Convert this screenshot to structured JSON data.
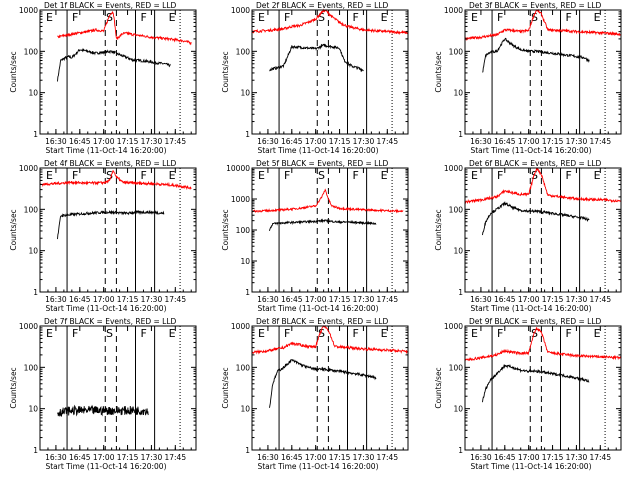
{
  "start_time_label": "Start Time (11-Oct-14 16:20:00)",
  "ylabel": "Counts/sec",
  "yticks": [
    "1",
    "10",
    "100",
    "1000"
  ],
  "yticks_5": [
    "1",
    "10",
    "100",
    "1000",
    "10000"
  ],
  "xticks": [
    "16:30",
    "16:45",
    "17:00",
    "17:15",
    "17:30",
    "17:45"
  ],
  "colors": {
    "events": "#000000",
    "lld": "#ff0000"
  },
  "chart_data": [
    {
      "type": "line",
      "title": "Det 1f BLACK = Events, RED = LLD",
      "ylabel": "Counts/sec",
      "ylim": [
        1,
        1000
      ],
      "y_scale": "log",
      "xlim": [
        "16:20",
        "17:58"
      ],
      "region_labels": [
        "E",
        "F",
        "S",
        "F",
        "E"
      ],
      "solid_lines": [
        "16:37",
        "17:20",
        "17:32"
      ],
      "dashed_lines": [
        "17:01",
        "17:08"
      ],
      "dotted_lines": [
        "17:48"
      ],
      "series": [
        {
          "name": "Events",
          "color": "#000000",
          "x": [
            "16:31",
            "16:33",
            "16:36",
            "16:38",
            "16:40",
            "16:45",
            "16:50",
            "16:55",
            "17:00",
            "17:05",
            "17:11",
            "17:15",
            "17:18",
            "17:22",
            "17:26",
            "17:30",
            "17:34",
            "17:38",
            "17:42"
          ],
          "values": [
            20,
            60,
            70,
            75,
            70,
            110,
            100,
            90,
            95,
            100,
            80,
            70,
            62,
            60,
            58,
            55,
            52,
            50,
            45
          ]
        },
        {
          "name": "LLD",
          "color": "#ff0000",
          "x": [
            "16:31",
            "16:35",
            "16:40",
            "16:45",
            "16:50",
            "16:55",
            "17:00",
            "17:04",
            "17:06",
            "17:07",
            "17:08",
            "17:12",
            "17:15",
            "17:20",
            "17:30",
            "17:40",
            "17:50",
            "17:55"
          ],
          "values": [
            220,
            240,
            260,
            280,
            300,
            330,
            310,
            800,
            900,
            450,
            200,
            270,
            270,
            250,
            220,
            200,
            180,
            160
          ]
        }
      ]
    },
    {
      "type": "line",
      "title": "Det 2f BLACK = Events, RED = LLD",
      "ylabel": "Counts/sec",
      "ylim": [
        1,
        1000
      ],
      "y_scale": "log",
      "xlim": [
        "16:20",
        "17:58"
      ],
      "region_labels": [
        "E",
        "F",
        "S",
        "F",
        "E"
      ],
      "solid_lines": [
        "16:37",
        "17:20",
        "17:32"
      ],
      "dashed_lines": [
        "17:01",
        "17:08"
      ],
      "dotted_lines": [
        "17:48"
      ],
      "series": [
        {
          "name": "Events",
          "color": "#000000",
          "x": [
            "16:31",
            "16:33",
            "16:36",
            "16:40",
            "16:45",
            "16:50",
            "16:55",
            "17:00",
            "17:05",
            "17:10",
            "17:15",
            "17:18",
            "17:22",
            "17:26",
            "17:30"
          ],
          "values": [
            35,
            38,
            40,
            45,
            130,
            125,
            120,
            115,
            140,
            130,
            120,
            60,
            45,
            40,
            35
          ]
        },
        {
          "name": "LLD",
          "color": "#ff0000",
          "x": [
            "16:20",
            "16:30",
            "16:40",
            "16:45",
            "16:50",
            "16:55",
            "17:00",
            "17:04",
            "17:06",
            "17:10",
            "17:15",
            "17:20",
            "17:30",
            "17:45",
            "17:58"
          ],
          "values": [
            300,
            320,
            350,
            400,
            420,
            500,
            600,
            900,
            1000,
            700,
            500,
            400,
            330,
            300,
            280
          ]
        }
      ]
    },
    {
      "type": "line",
      "title": "Det 3f BLACK = Events, RED = LLD",
      "ylabel": "Counts/sec",
      "ylim": [
        1,
        1000
      ],
      "y_scale": "log",
      "xlim": [
        "16:20",
        "17:58"
      ],
      "region_labels": [
        "E",
        "F",
        "S",
        "F",
        "E"
      ],
      "solid_lines": [
        "16:37",
        "17:20",
        "17:32"
      ],
      "dashed_lines": [
        "17:01",
        "17:08"
      ],
      "dotted_lines": [
        "17:48"
      ],
      "series": [
        {
          "name": "Events",
          "color": "#000000",
          "x": [
            "16:31",
            "16:33",
            "16:36",
            "16:40",
            "16:45",
            "16:50",
            "16:55",
            "17:00",
            "17:05",
            "17:10",
            "17:15",
            "17:20",
            "17:25",
            "17:30",
            "17:35",
            "17:38"
          ],
          "values": [
            30,
            80,
            95,
            100,
            200,
            140,
            110,
            100,
            100,
            95,
            90,
            85,
            80,
            75,
            70,
            60
          ]
        },
        {
          "name": "LLD",
          "color": "#ff0000",
          "x": [
            "16:20",
            "16:30",
            "16:40",
            "16:45",
            "16:50",
            "16:55",
            "17:00",
            "17:03",
            "17:05",
            "17:08",
            "17:12",
            "17:20",
            "17:30",
            "17:45",
            "17:58"
          ],
          "values": [
            200,
            220,
            250,
            330,
            320,
            300,
            320,
            700,
            1000,
            800,
            330,
            320,
            300,
            280,
            260
          ]
        }
      ]
    },
    {
      "type": "line",
      "title": "Det 4f BLACK = Events, RED = LLD",
      "ylabel": "Counts/sec",
      "ylim": [
        1,
        1000
      ],
      "y_scale": "log",
      "xlim": [
        "16:20",
        "17:58"
      ],
      "region_labels": [
        "E",
        "F",
        "S",
        "F",
        "E"
      ],
      "solid_lines": [
        "16:37",
        "17:20",
        "17:32"
      ],
      "dashed_lines": [
        "17:01",
        "17:08"
      ],
      "dotted_lines": [
        "17:48"
      ],
      "series": [
        {
          "name": "Events",
          "color": "#000000",
          "x": [
            "16:31",
            "16:33",
            "16:40",
            "16:50",
            "17:00",
            "17:05",
            "17:10",
            "17:15",
            "17:20",
            "17:30",
            "17:38"
          ],
          "values": [
            20,
            70,
            75,
            80,
            85,
            85,
            82,
            80,
            85,
            85,
            80
          ]
        },
        {
          "name": "LLD",
          "color": "#ff0000",
          "x": [
            "16:20",
            "16:30",
            "16:40",
            "16:50",
            "17:00",
            "17:04",
            "17:06",
            "17:08",
            "17:12",
            "17:20",
            "17:30",
            "17:45",
            "17:55"
          ],
          "values": [
            400,
            420,
            450,
            430,
            440,
            500,
            900,
            600,
            450,
            430,
            420,
            380,
            330
          ]
        }
      ]
    },
    {
      "type": "line",
      "title": "Det 5f BLACK = Events, RED = LLD",
      "ylabel": "Counts/sec",
      "ylim": [
        1,
        10000
      ],
      "y_scale": "log",
      "xlim": [
        "16:20",
        "17:58"
      ],
      "region_labels": [
        "E",
        "F",
        "S",
        "F",
        "E"
      ],
      "solid_lines": [
        "16:37",
        "17:20",
        "17:32"
      ],
      "dashed_lines": [
        "17:01",
        "17:08"
      ],
      "dotted_lines": [
        "17:48"
      ],
      "series": [
        {
          "name": "Events",
          "color": "#000000",
          "x": [
            "16:31",
            "16:33",
            "16:40",
            "16:50",
            "17:00",
            "17:05",
            "17:10",
            "17:15",
            "17:20",
            "17:30",
            "17:38"
          ],
          "values": [
            100,
            160,
            170,
            180,
            190,
            200,
            190,
            180,
            180,
            170,
            160
          ]
        },
        {
          "name": "LLD",
          "color": "#ff0000",
          "x": [
            "16:20",
            "16:30",
            "16:40",
            "16:50",
            "17:00",
            "17:04",
            "17:06",
            "17:08",
            "17:10",
            "17:15",
            "17:20",
            "17:30",
            "17:45",
            "17:55"
          ],
          "values": [
            400,
            420,
            450,
            500,
            600,
            1200,
            2000,
            1000,
            600,
            500,
            480,
            450,
            420,
            400
          ]
        }
      ]
    },
    {
      "type": "line",
      "title": "Det 6f BLACK = Events, RED = LLD",
      "ylabel": "Counts/sec",
      "ylim": [
        1,
        1000
      ],
      "y_scale": "log",
      "xlim": [
        "16:20",
        "17:58"
      ],
      "region_labels": [
        "E",
        "F",
        "S",
        "F",
        "E"
      ],
      "solid_lines": [
        "16:37",
        "17:20",
        "17:32"
      ],
      "dashed_lines": [
        "17:01",
        "17:08"
      ],
      "dotted_lines": [
        "17:48"
      ],
      "series": [
        {
          "name": "Events",
          "color": "#000000",
          "x": [
            "16:31",
            "16:33",
            "16:36",
            "16:40",
            "16:45",
            "16:50",
            "16:55",
            "17:00",
            "17:05",
            "17:10",
            "17:15",
            "17:20",
            "17:25",
            "17:30",
            "17:35",
            "17:38"
          ],
          "values": [
            25,
            50,
            80,
            100,
            140,
            110,
            95,
            90,
            90,
            85,
            80,
            75,
            70,
            65,
            60,
            55
          ]
        },
        {
          "name": "LLD",
          "color": "#ff0000",
          "x": [
            "16:20",
            "16:30",
            "16:40",
            "16:45",
            "16:50",
            "16:55",
            "17:00",
            "17:03",
            "17:05",
            "17:08",
            "17:12",
            "17:20",
            "17:30",
            "17:45",
            "17:58"
          ],
          "values": [
            150,
            170,
            200,
            280,
            250,
            230,
            230,
            600,
            1000,
            700,
            220,
            200,
            180,
            170,
            160
          ]
        }
      ]
    },
    {
      "type": "line",
      "title": "Det 7f BLACK = Events, RED = LLD",
      "ylabel": "Counts/sec",
      "ylim": [
        1,
        1000
      ],
      "y_scale": "log",
      "xlim": [
        "16:20",
        "17:58"
      ],
      "region_labels": [
        "E",
        "F",
        "S",
        "F",
        "E"
      ],
      "solid_lines": [
        "16:37",
        "17:20",
        "17:32"
      ],
      "dashed_lines": [
        "17:01",
        "17:08"
      ],
      "dotted_lines": [
        "17:48"
      ],
      "series": [
        {
          "name": "Events",
          "color": "#000000",
          "x": [
            "16:31",
            "16:40",
            "16:50",
            "17:00",
            "17:10",
            "17:20",
            "17:28"
          ],
          "values": [
            8,
            9,
            9,
            9,
            9,
            9,
            9
          ]
        }
      ]
    },
    {
      "type": "line",
      "title": "Det 8f BLACK = Events, RED = LLD",
      "ylabel": "Counts/sec",
      "ylim": [
        1,
        1000
      ],
      "y_scale": "log",
      "xlim": [
        "16:20",
        "17:58"
      ],
      "region_labels": [
        "E",
        "F",
        "S",
        "F",
        "E"
      ],
      "solid_lines": [
        "16:37",
        "17:20",
        "17:32"
      ],
      "dashed_lines": [
        "17:01",
        "17:08"
      ],
      "dotted_lines": [
        "17:48"
      ],
      "series": [
        {
          "name": "Events",
          "color": "#000000",
          "x": [
            "16:31",
            "16:33",
            "16:36",
            "16:40",
            "16:45",
            "16:50",
            "16:55",
            "17:00",
            "17:05",
            "17:10",
            "17:15",
            "17:20",
            "17:25",
            "17:30",
            "17:35",
            "17:38"
          ],
          "values": [
            10,
            40,
            80,
            100,
            150,
            120,
            100,
            90,
            90,
            85,
            80,
            75,
            70,
            65,
            60,
            55
          ]
        },
        {
          "name": "LLD",
          "color": "#ff0000",
          "x": [
            "16:20",
            "16:30",
            "16:40",
            "16:45",
            "16:50",
            "16:55",
            "17:00",
            "17:03",
            "17:05",
            "17:08",
            "17:12",
            "17:20",
            "17:30",
            "17:45",
            "17:58"
          ],
          "values": [
            230,
            250,
            300,
            380,
            350,
            320,
            320,
            700,
            1000,
            800,
            320,
            300,
            280,
            260,
            240
          ]
        }
      ]
    },
    {
      "type": "line",
      "title": "Det 9f BLACK = Events, RED = LLD",
      "ylabel": "Counts/sec",
      "ylim": [
        1,
        1000
      ],
      "y_scale": "log",
      "xlim": [
        "16:20",
        "17:58"
      ],
      "region_labels": [
        "E",
        "F",
        "S",
        "F",
        "E"
      ],
      "solid_lines": [
        "16:37",
        "17:20",
        "17:32"
      ],
      "dashed_lines": [
        "17:01",
        "17:08"
      ],
      "dotted_lines": [
        "17:48"
      ],
      "series": [
        {
          "name": "Events",
          "color": "#000000",
          "x": [
            "16:31",
            "16:33",
            "16:36",
            "16:40",
            "16:45",
            "16:50",
            "16:55",
            "17:00",
            "17:05",
            "17:10",
            "17:15",
            "17:20",
            "17:25",
            "17:30",
            "17:35",
            "17:38"
          ],
          "values": [
            15,
            30,
            50,
            70,
            110,
            100,
            85,
            80,
            80,
            75,
            70,
            65,
            60,
            55,
            50,
            45
          ]
        },
        {
          "name": "LLD",
          "color": "#ff0000",
          "x": [
            "16:20",
            "16:30",
            "16:40",
            "16:45",
            "16:50",
            "16:55",
            "17:00",
            "17:03",
            "17:05",
            "17:08",
            "17:12",
            "17:20",
            "17:30",
            "17:45",
            "17:58"
          ],
          "values": [
            150,
            170,
            200,
            250,
            230,
            220,
            220,
            600,
            900,
            700,
            230,
            210,
            190,
            180,
            170
          ]
        }
      ]
    }
  ]
}
